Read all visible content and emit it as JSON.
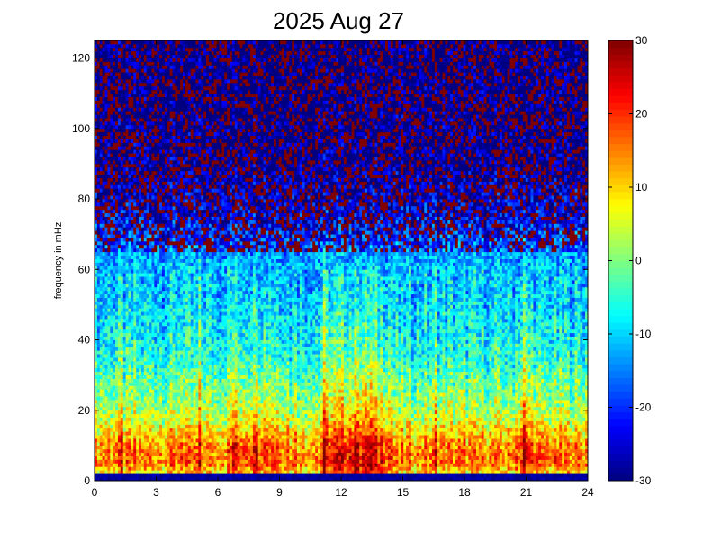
{
  "chart_data": {
    "type": "heatmap",
    "title": "2025 Aug 27",
    "xlabel": "",
    "ylabel": "frequency in mHz",
    "xlim": [
      0,
      24
    ],
    "ylim": [
      0,
      125
    ],
    "x_ticks": [
      0,
      3,
      6,
      9,
      12,
      15,
      18,
      21,
      24
    ],
    "y_ticks": [
      0,
      20,
      40,
      60,
      80,
      100,
      120
    ],
    "colorbar": {
      "range": [
        -30,
        30
      ],
      "ticks": [
        -30,
        -20,
        -10,
        0,
        10,
        20,
        30
      ],
      "colormap": "jet"
    },
    "grid": false,
    "cells": {
      "time_bins": 190,
      "frequency_bins": 125
    },
    "profile": {
      "description_free": true,
      "frequency_bands_mHz": [
        0,
        2,
        5,
        10,
        18,
        35,
        50,
        62,
        75,
        90,
        125
      ],
      "typical_level": [
        -28,
        8,
        16,
        14,
        4,
        -6,
        -10,
        -12,
        -20,
        -26,
        -28
      ],
      "enhanced_intervals_hours": [
        {
          "start": 6.5,
          "end": 9.5,
          "boost": 6
        },
        {
          "start": 11.0,
          "end": 14.5,
          "boost": 10
        },
        {
          "start": 20.5,
          "end": 21.5,
          "boost": 6
        }
      ],
      "vertical_streaks_hours": [
        1.3,
        4.2,
        5.1,
        6.8,
        7.9,
        9.8,
        11.2,
        12.8,
        13.4,
        16.6,
        20.9
      ]
    }
  }
}
